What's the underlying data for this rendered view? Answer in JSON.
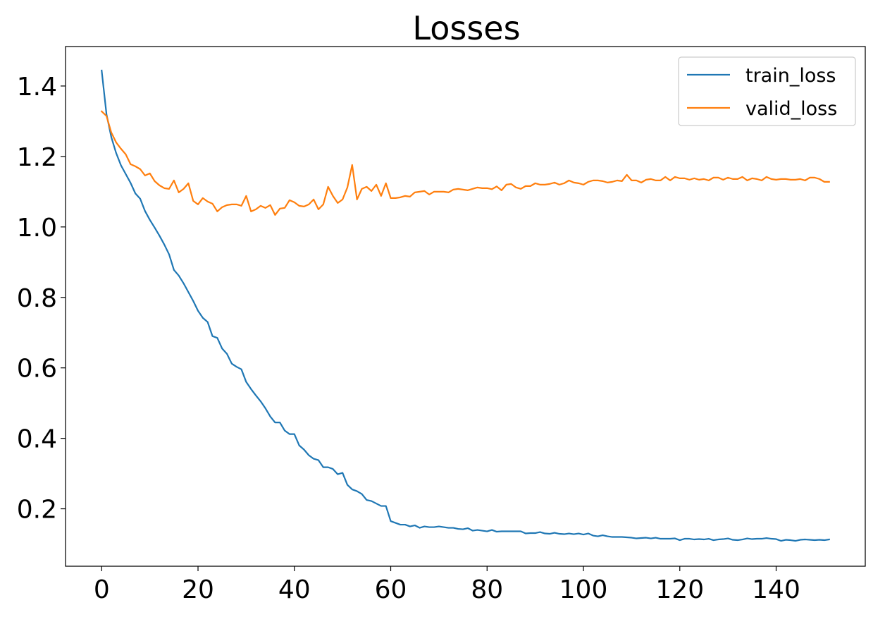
{
  "chart_data": {
    "type": "line",
    "title": "Losses",
    "xlabel": "",
    "ylabel": "",
    "xlim": [
      -7.5,
      158.5
    ],
    "ylim": [
      0.037,
      1.512
    ],
    "xticks": [
      0,
      20,
      40,
      60,
      80,
      100,
      120,
      140
    ],
    "yticks": [
      0.2,
      0.4,
      0.6,
      0.8,
      1.0,
      1.2,
      1.4
    ],
    "xtick_labels": [
      "0",
      "20",
      "40",
      "60",
      "80",
      "100",
      "120",
      "140"
    ],
    "ytick_labels": [
      "0.2",
      "0.4",
      "0.6",
      "0.8",
      "1.0",
      "1.2",
      "1.4"
    ],
    "grid": false,
    "legend_position": "top-right",
    "x": [
      0,
      1,
      2,
      3,
      4,
      5,
      6,
      7,
      8,
      9,
      10,
      11,
      12,
      13,
      14,
      15,
      16,
      17,
      18,
      19,
      20,
      21,
      22,
      23,
      24,
      25,
      26,
      27,
      28,
      29,
      30,
      31,
      32,
      33,
      34,
      35,
      36,
      37,
      38,
      39,
      40,
      41,
      42,
      43,
      44,
      45,
      46,
      47,
      48,
      49,
      50,
      51,
      52,
      53,
      54,
      55,
      56,
      57,
      58,
      59,
      60,
      61,
      62,
      63,
      64,
      65,
      66,
      67,
      68,
      69,
      70,
      71,
      72,
      73,
      74,
      75,
      76,
      77,
      78,
      79,
      80,
      81,
      82,
      83,
      84,
      85,
      86,
      87,
      88,
      89,
      90,
      91,
      92,
      93,
      94,
      95,
      96,
      97,
      98,
      99,
      100,
      101,
      102,
      103,
      104,
      105,
      106,
      107,
      108,
      109,
      110,
      111,
      112,
      113,
      114,
      115,
      116,
      117,
      118,
      119,
      120,
      121,
      122,
      123,
      124,
      125,
      126,
      127,
      128,
      129,
      130,
      131,
      132,
      133,
      134,
      135,
      136,
      137,
      138,
      139,
      140,
      141,
      142,
      143,
      144,
      145,
      146,
      147,
      148,
      149,
      150,
      151
    ],
    "series": [
      {
        "name": "train_loss",
        "color": "#1f77b4",
        "values": [
          1.444,
          1.32,
          1.255,
          1.21,
          1.175,
          1.15,
          1.125,
          1.095,
          1.08,
          1.045,
          1.02,
          0.998,
          0.975,
          0.95,
          0.922,
          0.878,
          0.862,
          0.84,
          0.815,
          0.79,
          0.762,
          0.742,
          0.73,
          0.69,
          0.685,
          0.655,
          0.64,
          0.612,
          0.603,
          0.596,
          0.56,
          0.54,
          0.522,
          0.505,
          0.485,
          0.462,
          0.445,
          0.445,
          0.422,
          0.412,
          0.412,
          0.38,
          0.368,
          0.352,
          0.342,
          0.338,
          0.318,
          0.318,
          0.313,
          0.298,
          0.302,
          0.268,
          0.255,
          0.25,
          0.242,
          0.225,
          0.222,
          0.215,
          0.208,
          0.208,
          0.165,
          0.16,
          0.155,
          0.155,
          0.15,
          0.153,
          0.146,
          0.15,
          0.148,
          0.148,
          0.15,
          0.148,
          0.146,
          0.146,
          0.143,
          0.142,
          0.145,
          0.138,
          0.14,
          0.138,
          0.136,
          0.14,
          0.135,
          0.136,
          0.136,
          0.136,
          0.136,
          0.136,
          0.13,
          0.131,
          0.131,
          0.134,
          0.13,
          0.129,
          0.132,
          0.129,
          0.128,
          0.13,
          0.128,
          0.13,
          0.127,
          0.13,
          0.124,
          0.122,
          0.125,
          0.122,
          0.12,
          0.12,
          0.12,
          0.119,
          0.118,
          0.116,
          0.117,
          0.118,
          0.116,
          0.118,
          0.115,
          0.115,
          0.115,
          0.116,
          0.111,
          0.115,
          0.115,
          0.113,
          0.114,
          0.113,
          0.115,
          0.111,
          0.113,
          0.114,
          0.116,
          0.112,
          0.111,
          0.113,
          0.116,
          0.114,
          0.115,
          0.115,
          0.117,
          0.115,
          0.114,
          0.109,
          0.112,
          0.111,
          0.109,
          0.112,
          0.113,
          0.112,
          0.111,
          0.112,
          0.111,
          0.113
        ]
      },
      {
        "name": "valid_loss",
        "color": "#ff7f0e",
        "values": [
          1.328,
          1.315,
          1.268,
          1.24,
          1.222,
          1.206,
          1.178,
          1.172,
          1.164,
          1.146,
          1.152,
          1.13,
          1.118,
          1.11,
          1.108,
          1.132,
          1.098,
          1.108,
          1.124,
          1.074,
          1.064,
          1.082,
          1.072,
          1.066,
          1.044,
          1.056,
          1.062,
          1.064,
          1.064,
          1.06,
          1.088,
          1.044,
          1.05,
          1.06,
          1.054,
          1.062,
          1.034,
          1.052,
          1.054,
          1.076,
          1.07,
          1.06,
          1.058,
          1.064,
          1.078,
          1.05,
          1.064,
          1.114,
          1.088,
          1.068,
          1.078,
          1.112,
          1.176,
          1.078,
          1.108,
          1.114,
          1.102,
          1.12,
          1.088,
          1.124,
          1.082,
          1.082,
          1.084,
          1.088,
          1.086,
          1.098,
          1.1,
          1.102,
          1.092,
          1.1,
          1.1,
          1.1,
          1.098,
          1.106,
          1.108,
          1.106,
          1.104,
          1.108,
          1.112,
          1.11,
          1.11,
          1.107,
          1.115,
          1.104,
          1.12,
          1.122,
          1.112,
          1.108,
          1.116,
          1.116,
          1.124,
          1.12,
          1.12,
          1.122,
          1.126,
          1.12,
          1.124,
          1.132,
          1.126,
          1.124,
          1.12,
          1.128,
          1.132,
          1.132,
          1.13,
          1.126,
          1.128,
          1.132,
          1.13,
          1.148,
          1.132,
          1.132,
          1.126,
          1.134,
          1.136,
          1.132,
          1.132,
          1.142,
          1.132,
          1.142,
          1.138,
          1.138,
          1.134,
          1.138,
          1.134,
          1.136,
          1.132,
          1.14,
          1.14,
          1.134,
          1.14,
          1.136,
          1.136,
          1.142,
          1.132,
          1.138,
          1.136,
          1.132,
          1.142,
          1.136,
          1.134,
          1.136,
          1.136,
          1.134,
          1.134,
          1.136,
          1.132,
          1.14,
          1.14,
          1.136,
          1.128,
          1.128
        ]
      }
    ]
  }
}
